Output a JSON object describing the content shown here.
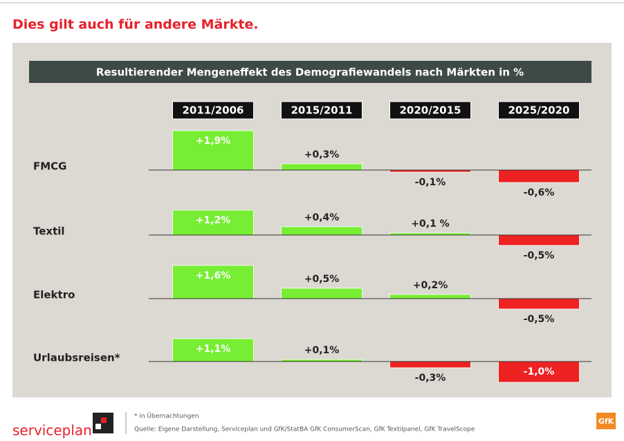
{
  "page_heading": "Dies gilt auch für andere Märkte.",
  "chart_data": {
    "type": "bar",
    "title": "Resultierender Mengeneffekt des Demografiewandels nach Märkten in %",
    "categories": [
      "2011/2006",
      "2015/2011",
      "2020/2015",
      "2025/2020"
    ],
    "positive_color": "#77ee33",
    "negative_color": "#ee2222",
    "series": [
      {
        "name": "FMCG",
        "values": [
          1.9,
          0.3,
          -0.1,
          -0.6
        ],
        "value_labels": [
          "+1,9%",
          "+0,3%",
          "-0,1%",
          "-0,6%"
        ]
      },
      {
        "name": "Textil",
        "values": [
          1.2,
          0.4,
          0.1,
          -0.5
        ],
        "value_labels": [
          "+1,2%",
          "+0,4%",
          "+0,1 %",
          "-0,5%"
        ]
      },
      {
        "name": "Elektro",
        "values": [
          1.6,
          0.5,
          0.2,
          -0.5
        ],
        "value_labels": [
          "+1,6%",
          "+0,5%",
          "+0,2%",
          "-0,5%"
        ]
      },
      {
        "name": "Urlaubsreisen*",
        "values": [
          1.1,
          0.1,
          -0.3,
          -1.0
        ],
        "value_labels": [
          "+1,1%",
          "+0,1%",
          "-0,3%",
          "-1,0%"
        ]
      }
    ]
  },
  "footnote": "* in Übernachtungen",
  "source": "Quelle: Eigene Darstellung, Serviceplan und GfK/StatBA GfK ConsumerScan, GfK Textilpanel, GfK TravelScope",
  "logo_left": "serviceplan",
  "logo_right": "GfK"
}
